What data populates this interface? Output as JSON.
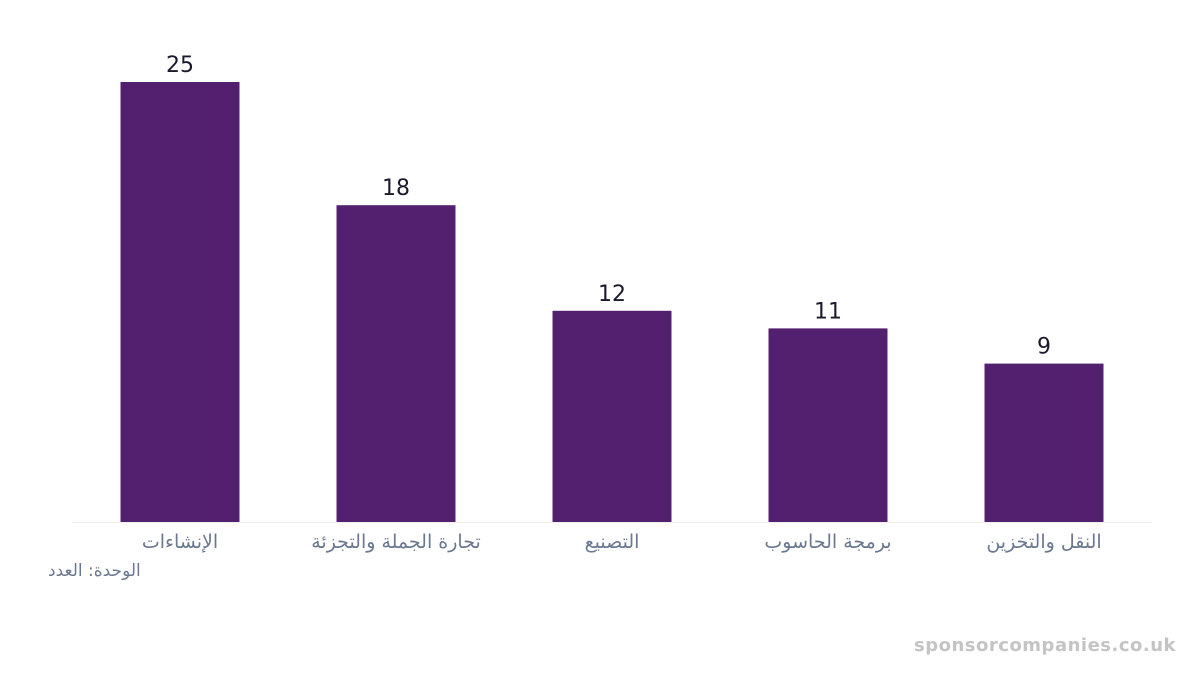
{
  "chart_data": {
    "type": "bar",
    "categories": [
      "الإنشاءات",
      "تجارة الجملة والتجزئة",
      "التصنيع",
      "برمجة الحاسوب",
      "النقل والتخزين"
    ],
    "values": [
      25,
      18,
      12,
      11,
      9
    ],
    "ylim": [
      0,
      25
    ],
    "grid": false,
    "bar_color": "#52206f",
    "unit_label": "الوحدة: العدد"
  },
  "watermark": "sponsorcompanies.co.uk"
}
